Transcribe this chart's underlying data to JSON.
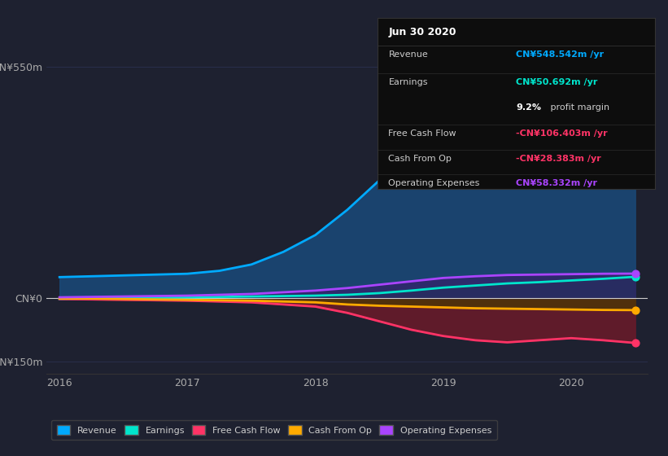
{
  "background_color": "#1e2130",
  "plot_bg_color": "#1e2130",
  "x_years": [
    2016.0,
    2016.25,
    2016.5,
    2016.75,
    2017.0,
    2017.25,
    2017.5,
    2017.75,
    2018.0,
    2018.25,
    2018.5,
    2018.75,
    2019.0,
    2019.25,
    2019.5,
    2019.75,
    2020.0,
    2020.25,
    2020.5
  ],
  "revenue": [
    50,
    52,
    54,
    56,
    58,
    65,
    80,
    110,
    150,
    210,
    280,
    340,
    390,
    410,
    430,
    440,
    470,
    510,
    548
  ],
  "earnings": [
    -2,
    -1,
    0,
    1,
    2,
    3,
    4,
    5,
    6,
    8,
    12,
    18,
    25,
    30,
    35,
    38,
    42,
    46,
    50.692
  ],
  "free_cash_flow": [
    -2,
    -3,
    -4,
    -5,
    -6,
    -8,
    -10,
    -15,
    -20,
    -35,
    -55,
    -75,
    -90,
    -100,
    -105,
    -100,
    -95,
    -100,
    -106.403
  ],
  "cash_from_op": [
    -1,
    -1,
    -2,
    -3,
    -4,
    -5,
    -6,
    -8,
    -10,
    -15,
    -18,
    -20,
    -22,
    -24,
    -25,
    -26,
    -27,
    -28,
    -28.383
  ],
  "operating_expenses": [
    2,
    3,
    4,
    5,
    6,
    8,
    10,
    14,
    18,
    24,
    32,
    40,
    48,
    52,
    55,
    56,
    57,
    58,
    58.332
  ],
  "revenue_color": "#00aaff",
  "revenue_fill": "#1a4a7a",
  "earnings_color": "#00e5cc",
  "earnings_fill": "#0a4a4a",
  "free_cash_flow_color": "#ff3366",
  "free_cash_flow_fill": "#6b1a2a",
  "cash_from_op_color": "#ffaa00",
  "cash_from_op_fill": "#4a3a00",
  "operating_expenses_color": "#aa44ff",
  "operating_expenses_fill": "#3a1a6a",
  "ylim": [
    -180,
    600
  ],
  "xticks": [
    2016,
    2017,
    2018,
    2019,
    2020
  ],
  "grid_color": "#2a3050",
  "zero_line_color": "#cccccc",
  "info_box": {
    "date": "Jun 30 2020",
    "revenue_label": "Revenue",
    "revenue_value": "CN¥548.542m /yr",
    "revenue_color": "#00aaff",
    "earnings_label": "Earnings",
    "earnings_value": "CN¥50.692m /yr",
    "earnings_color": "#00e5cc",
    "fcf_label": "Free Cash Flow",
    "fcf_value": "-CN¥106.403m /yr",
    "fcf_color": "#ff3366",
    "cashop_label": "Cash From Op",
    "cashop_value": "-CN¥28.383m /yr",
    "cashop_color": "#ff3366",
    "opex_label": "Operating Expenses",
    "opex_value": "CN¥58.332m /yr",
    "opex_color": "#aa44ff",
    "bg_color": "#0d0d0d",
    "text_color": "#cccccc",
    "border_color": "#333333"
  },
  "legend": [
    {
      "label": "Revenue",
      "color": "#00aaff"
    },
    {
      "label": "Earnings",
      "color": "#00e5cc"
    },
    {
      "label": "Free Cash Flow",
      "color": "#ff3366"
    },
    {
      "label": "Cash From Op",
      "color": "#ffaa00"
    },
    {
      "label": "Operating Expenses",
      "color": "#aa44ff"
    }
  ]
}
